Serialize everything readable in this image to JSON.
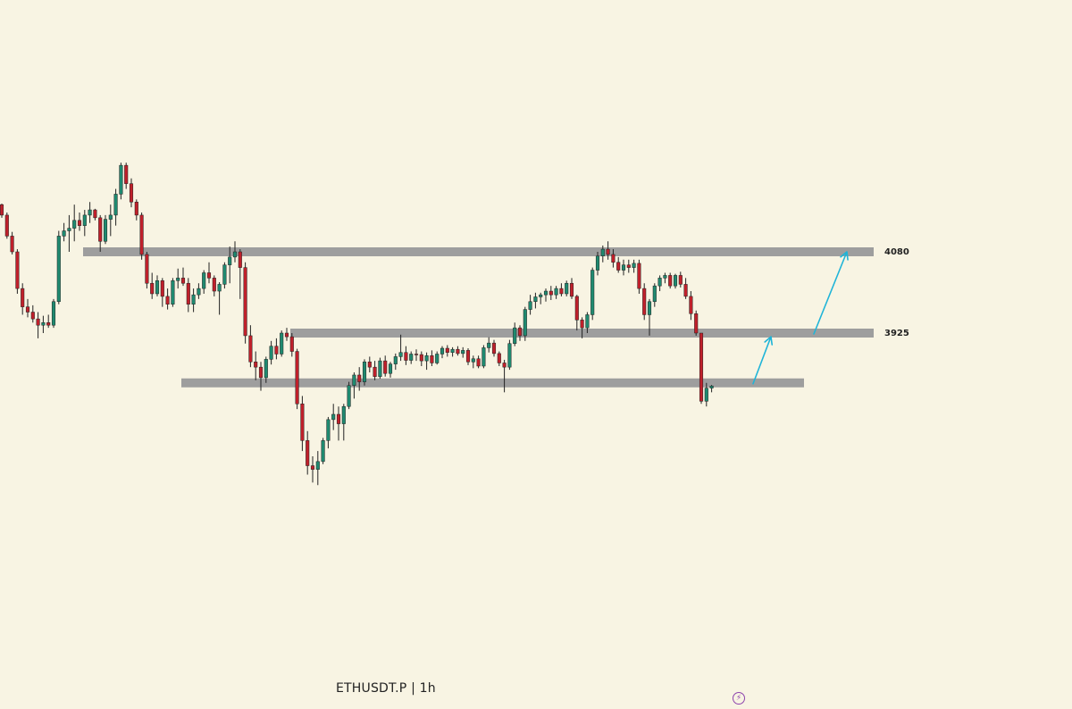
{
  "chart_data": {
    "type": "candlestick",
    "title": "ETHUSDT.P | 1h",
    "symbol": "ETHUSDT.P",
    "interval": "1h",
    "grid": false,
    "colors": {
      "background": "#f8f4e3",
      "up": "#1f8a70",
      "down": "#c0202b",
      "wick": "#222222",
      "zone": "#9e9e9e",
      "arrow": "#1fb4d8",
      "accent": "#8e44ad"
    },
    "levels": [
      {
        "label": "4080",
        "value": 4080
      },
      {
        "label": "3925",
        "value": 3925
      },
      {
        "label": "",
        "value": 3830
      }
    ],
    "projection_arrows": [
      {
        "from": 3830,
        "to": 3918
      },
      {
        "from": 3925,
        "to": 4080
      }
    ],
    "ohlc": [
      [
        4170,
        4172,
        4145,
        4150
      ],
      [
        4150,
        4155,
        4105,
        4110
      ],
      [
        4110,
        4118,
        4075,
        4080
      ],
      [
        4080,
        4085,
        4000,
        4010
      ],
      [
        4010,
        4020,
        3960,
        3975
      ],
      [
        3975,
        3990,
        3955,
        3965
      ],
      [
        3965,
        3978,
        3945,
        3952
      ],
      [
        3952,
        3965,
        3915,
        3940
      ],
      [
        3940,
        3958,
        3925,
        3945
      ],
      [
        3945,
        3960,
        3935,
        3940
      ],
      [
        3940,
        3990,
        3935,
        3985
      ],
      [
        3985,
        4120,
        3980,
        4110
      ],
      [
        4110,
        4135,
        4100,
        4120
      ],
      [
        4120,
        4150,
        4080,
        4125
      ],
      [
        4125,
        4170,
        4100,
        4140
      ],
      [
        4140,
        4155,
        4120,
        4130
      ],
      [
        4130,
        4160,
        4110,
        4150
      ],
      [
        4150,
        4175,
        4135,
        4160
      ],
      [
        4160,
        4162,
        4140,
        4145
      ],
      [
        4145,
        4150,
        4080,
        4100
      ],
      [
        4100,
        4150,
        4095,
        4142
      ],
      [
        4142,
        4170,
        4110,
        4150
      ],
      [
        4150,
        4200,
        4130,
        4190
      ],
      [
        4190,
        4250,
        4180,
        4245
      ],
      [
        4245,
        4250,
        4200,
        4210
      ],
      [
        4210,
        4220,
        4165,
        4175
      ],
      [
        4175,
        4180,
        4140,
        4150
      ],
      [
        4150,
        4155,
        4065,
        4075
      ],
      [
        4075,
        4080,
        4010,
        4020
      ],
      [
        4020,
        4040,
        3990,
        4000
      ],
      [
        4000,
        4035,
        3995,
        4025
      ],
      [
        4025,
        4030,
        3975,
        3995
      ],
      [
        3995,
        4010,
        3970,
        3980
      ],
      [
        3980,
        4030,
        3975,
        4025
      ],
      [
        4025,
        4048,
        4010,
        4030
      ],
      [
        4030,
        4050,
        4015,
        4020
      ],
      [
        4020,
        4030,
        3965,
        3980
      ],
      [
        3980,
        4010,
        3965,
        3998
      ],
      [
        3998,
        4020,
        3990,
        4010
      ],
      [
        4010,
        4045,
        4000,
        4040
      ],
      [
        4040,
        4060,
        4020,
        4030
      ],
      [
        4030,
        4035,
        3995,
        4005
      ],
      [
        4005,
        4022,
        3960,
        4018
      ],
      [
        4018,
        4060,
        4010,
        4055
      ],
      [
        4055,
        4090,
        4020,
        4070
      ],
      [
        4070,
        4100,
        4060,
        4080
      ],
      [
        4080,
        4085,
        3990,
        4050
      ],
      [
        4050,
        4060,
        3905,
        3920
      ],
      [
        3920,
        3940,
        3860,
        3870
      ],
      [
        3870,
        3890,
        3835,
        3860
      ],
      [
        3860,
        3870,
        3815,
        3840
      ],
      [
        3840,
        3880,
        3830,
        3875
      ],
      [
        3875,
        3910,
        3865,
        3900
      ],
      [
        3900,
        3915,
        3875,
        3885
      ],
      [
        3885,
        3930,
        3880,
        3925
      ],
      [
        3925,
        3935,
        3910,
        3918
      ],
      [
        3918,
        3925,
        3880,
        3890
      ],
      [
        3890,
        3895,
        3780,
        3790
      ],
      [
        3790,
        3805,
        3700,
        3720
      ],
      [
        3720,
        3738,
        3655,
        3672
      ],
      [
        3672,
        3690,
        3640,
        3665
      ],
      [
        3665,
        3700,
        3635,
        3680
      ],
      [
        3680,
        3725,
        3675,
        3720
      ],
      [
        3720,
        3765,
        3705,
        3760
      ],
      [
        3760,
        3790,
        3740,
        3770
      ],
      [
        3770,
        3785,
        3720,
        3752
      ],
      [
        3752,
        3790,
        3720,
        3785
      ],
      [
        3785,
        3832,
        3780,
        3825
      ],
      [
        3825,
        3850,
        3800,
        3845
      ],
      [
        3845,
        3860,
        3815,
        3832
      ],
      [
        3832,
        3875,
        3825,
        3870
      ],
      [
        3870,
        3880,
        3850,
        3860
      ],
      [
        3860,
        3872,
        3835,
        3842
      ],
      [
        3842,
        3878,
        3838,
        3872
      ],
      [
        3872,
        3882,
        3842,
        3848
      ],
      [
        3848,
        3870,
        3840,
        3866
      ],
      [
        3866,
        3886,
        3855,
        3880
      ],
      [
        3880,
        3922,
        3872,
        3888
      ],
      [
        3888,
        3900,
        3864,
        3873
      ],
      [
        3873,
        3890,
        3866,
        3885
      ],
      [
        3885,
        3894,
        3872,
        3884
      ],
      [
        3884,
        3890,
        3862,
        3872
      ],
      [
        3872,
        3888,
        3855,
        3882
      ],
      [
        3882,
        3892,
        3862,
        3868
      ],
      [
        3868,
        3890,
        3865,
        3885
      ],
      [
        3885,
        3900,
        3877,
        3896
      ],
      [
        3896,
        3902,
        3880,
        3888
      ],
      [
        3888,
        3898,
        3880,
        3894
      ],
      [
        3894,
        3900,
        3882,
        3886
      ],
      [
        3886,
        3898,
        3878,
        3892
      ],
      [
        3892,
        3896,
        3864,
        3870
      ],
      [
        3870,
        3882,
        3858,
        3876
      ],
      [
        3876,
        3882,
        3858,
        3862
      ],
      [
        3862,
        3902,
        3858,
        3897
      ],
      [
        3897,
        3917,
        3888,
        3906
      ],
      [
        3906,
        3912,
        3880,
        3886
      ],
      [
        3886,
        3890,
        3862,
        3868
      ],
      [
        3868,
        3874,
        3812,
        3860
      ],
      [
        3860,
        3912,
        3855,
        3905
      ],
      [
        3905,
        3945,
        3900,
        3935
      ],
      [
        3935,
        3940,
        3910,
        3920
      ],
      [
        3920,
        3975,
        3910,
        3970
      ],
      [
        3970,
        3998,
        3960,
        3985
      ],
      [
        3985,
        4002,
        3972,
        3994
      ],
      [
        3994,
        4002,
        3980,
        3998
      ],
      [
        3998,
        4010,
        3985,
        4005
      ],
      [
        4005,
        4015,
        3988,
        3998
      ],
      [
        3998,
        4015,
        3990,
        4010
      ],
      [
        4010,
        4020,
        3995,
        4000
      ],
      [
        4000,
        4025,
        3995,
        4020
      ],
      [
        4020,
        4030,
        3990,
        3995
      ],
      [
        3995,
        3998,
        3930,
        3950
      ],
      [
        3950,
        3955,
        3915,
        3935
      ],
      [
        3935,
        3965,
        3925,
        3960
      ],
      [
        3960,
        4050,
        3950,
        4045
      ],
      [
        4045,
        4080,
        4035,
        4072
      ],
      [
        4072,
        4092,
        4060,
        4085
      ],
      [
        4085,
        4100,
        4065,
        4075
      ],
      [
        4075,
        4085,
        4050,
        4060
      ],
      [
        4060,
        4070,
        4040,
        4045
      ],
      [
        4045,
        4065,
        4035,
        4055
      ],
      [
        4055,
        4065,
        4040,
        4050
      ],
      [
        4050,
        4065,
        4040,
        4058
      ],
      [
        4058,
        4065,
        4000,
        4010
      ],
      [
        4010,
        4020,
        3950,
        3960
      ],
      [
        3960,
        3990,
        3920,
        3985
      ],
      [
        3985,
        4020,
        3975,
        4015
      ],
      [
        4015,
        4035,
        4005,
        4030
      ],
      [
        4030,
        4040,
        4020,
        4035
      ],
      [
        4035,
        4040,
        4010,
        4015
      ],
      [
        4015,
        4038,
        4010,
        4035
      ],
      [
        4035,
        4042,
        4012,
        4018
      ],
      [
        4018,
        4030,
        3990,
        3995
      ],
      [
        3995,
        4005,
        3950,
        3962
      ],
      [
        3962,
        3968,
        3920,
        3925
      ],
      [
        3925,
        3925,
        3790,
        3795
      ],
      [
        3795,
        3830,
        3785,
        3820
      ],
      [
        3820,
        3826,
        3812,
        3824
      ]
    ]
  }
}
